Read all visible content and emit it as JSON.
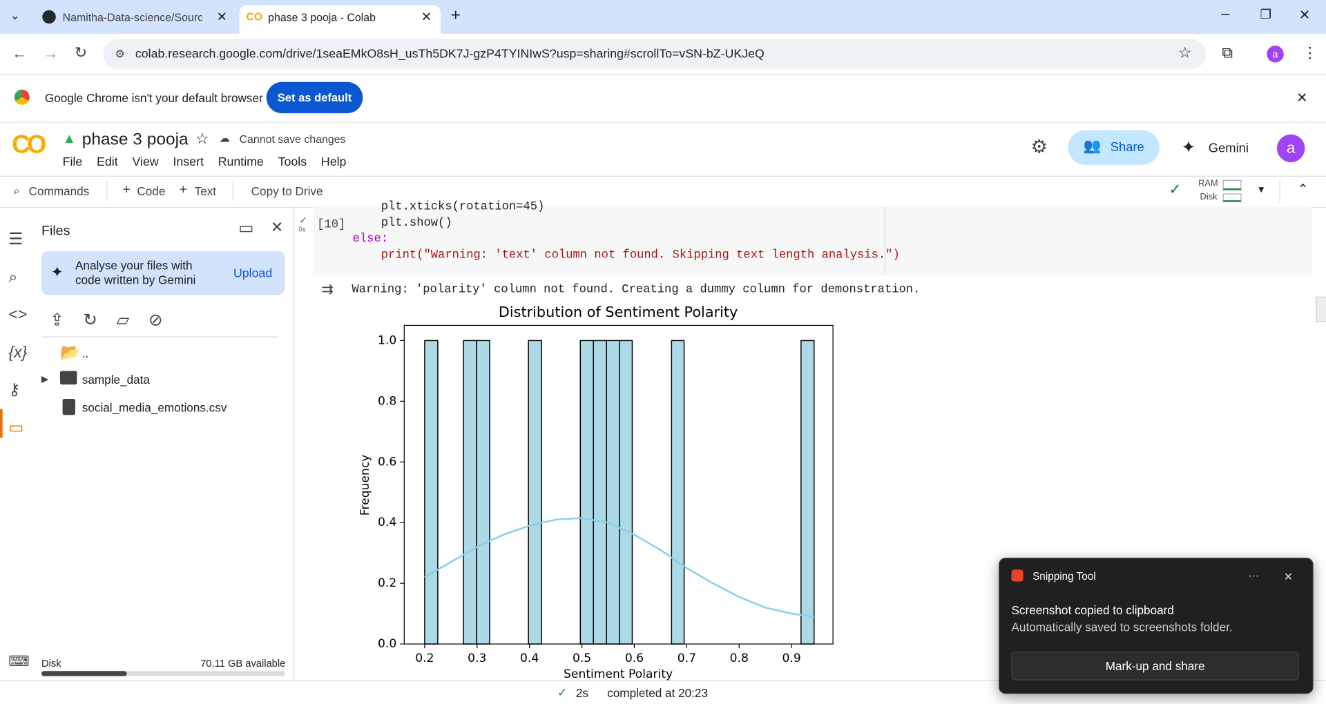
{
  "browser": {
    "tabs": [
      "Namitha-Data-science/Source C",
      "phase 3 pooja - Colab"
    ],
    "url": "colab.research.google.com/drive/1seaEMkO8sH_usTh5DK7J-gzP4TYINIwS?usp=sharing#scrollTo=vSN-bZ-UKJeQ",
    "profile": "a"
  },
  "banner": {
    "text": "Google Chrome isn't your default browser",
    "button": "Set as default"
  },
  "notebook": {
    "title": "phase 3 pooja",
    "save_status": "Cannot save changes",
    "menu": [
      "File",
      "Edit",
      "View",
      "Insert",
      "Runtime",
      "Tools",
      "Help"
    ],
    "share": "Share",
    "gemini": "Gemini",
    "avatar": "a",
    "toolbar": [
      "Commands",
      "Code",
      "Text",
      "Copy to Drive"
    ],
    "resources": [
      "RAM",
      "Disk"
    ]
  },
  "sidebar": {
    "title": "Files",
    "gemini_prompt": "Analyse your files with code written by Gemini",
    "upload": "Upload",
    "files": [
      "..",
      "sample_data",
      "social_media_emotions.csv"
    ],
    "disk_label": "Disk",
    "disk_available": "70.11 GB available"
  },
  "cell": {
    "exec_count": "[10]",
    "duration": "0s",
    "code": [
      "    plt.xticks(rotation=45)",
      "    plt.show()",
      "else:",
      "    print(\"Warning: 'text' column not found. Skipping text length analysis.\")"
    ],
    "output": "Warning: 'polarity' column not found. Creating a dummy column for demonstration."
  },
  "chart_data": {
    "type": "histogram",
    "title": "Distribution of Sentiment Polarity",
    "x_label": "Sentiment Polarity",
    "y_label": "Frequency",
    "color": "#add8e6",
    "bins": [
      0.2,
      0.225,
      0.25,
      0.274,
      0.299,
      0.324,
      0.349,
      0.373,
      0.398,
      0.423,
      0.448,
      0.472,
      0.497,
      0.522,
      0.547,
      0.572,
      0.596,
      0.621,
      0.646,
      0.671,
      0.695,
      0.72,
      0.745,
      0.77,
      0.795,
      0.819,
      0.844,
      0.869,
      0.894,
      0.918,
      0.943
    ],
    "values": [
      1,
      0,
      0,
      1,
      1,
      0,
      0,
      0,
      1,
      0,
      0,
      0,
      1,
      1,
      1,
      1,
      0,
      0,
      0,
      1,
      0,
      0,
      0,
      0,
      0,
      0,
      0,
      0,
      0,
      1
    ],
    "kde": {
      "color": "#87ceeb",
      "x": [
        0.2,
        0.25,
        0.3,
        0.35,
        0.4,
        0.45,
        0.5,
        0.55,
        0.6,
        0.65,
        0.7,
        0.75,
        0.8,
        0.85,
        0.9,
        0.943
      ],
      "values": [
        0.22,
        0.27,
        0.32,
        0.36,
        0.39,
        0.41,
        0.415,
        0.4,
        0.36,
        0.31,
        0.25,
        0.2,
        0.155,
        0.12,
        0.1,
        0.09
      ]
    },
    "xlim": [
      0.161,
      0.979
    ],
    "ylim": [
      0,
      1.05
    ],
    "xticks": [
      0.2,
      0.3,
      0.4,
      0.5,
      0.6,
      0.7,
      0.8,
      0.9
    ],
    "yticks": [
      {
        "value": 0,
        "label": "0.0"
      },
      0.2,
      0.4,
      0.6,
      0.8,
      {
        "value": 1,
        "label": "1.0"
      }
    ]
  },
  "status": {
    "duration": "2s",
    "text": "completed at 20:23"
  },
  "notification": {
    "app": "Snipping Tool",
    "title": "Screenshot copied to clipboard",
    "body": "Automatically saved to screenshots folder.",
    "button": "Mark-up and share"
  }
}
